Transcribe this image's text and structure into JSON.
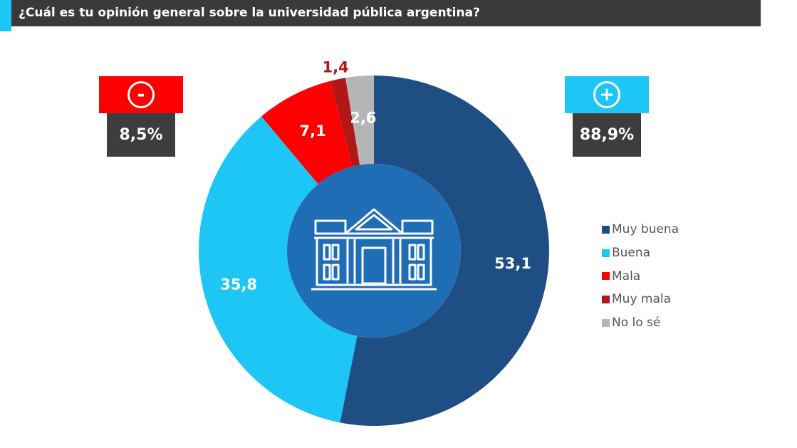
{
  "chart_data": {
    "type": "pie",
    "title": "¿Cuál es tu opinión general sobre la universidad pública argentina?",
    "categories": [
      "Muy buena",
      "Buena",
      "Mala",
      "Muy mala",
      "No lo sé"
    ],
    "values": [
      53.1,
      35.8,
      7.1,
      1.4,
      2.6
    ],
    "value_labels": [
      "53,1",
      "35,8",
      "7,1",
      "1,4",
      "2,6"
    ],
    "colors": [
      "#1f4e85",
      "#1ec6f5",
      "#ff0000",
      "#b01818",
      "#b5b5b5"
    ],
    "label_colors": [
      "#ffffff",
      "#ffffff",
      "#ffffff",
      "#b01818",
      "#ffffff"
    ],
    "start": "12 o'clock, clockwise",
    "legend_position": "right",
    "center_color": "#1e6db5"
  },
  "badges": {
    "negative": {
      "symbol": "-",
      "value": "8,5%",
      "color": "#ff0000"
    },
    "positive": {
      "symbol": "+",
      "value": "88,9%",
      "color": "#1ec6f5"
    }
  }
}
